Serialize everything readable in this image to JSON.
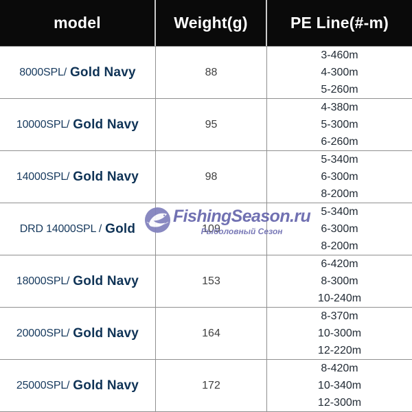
{
  "table": {
    "columns": [
      "model",
      "Weight(g)",
      "PE Line(#-m)"
    ],
    "rows": [
      {
        "model": "8000SPL/",
        "variant": "Gold Navy",
        "weight": "88",
        "pe_lines": [
          "3-460m",
          "4-300m",
          "5-260m"
        ]
      },
      {
        "model": "10000SPL/",
        "variant": "Gold Navy",
        "weight": "95",
        "pe_lines": [
          "4-380m",
          "5-300m",
          "6-260m"
        ]
      },
      {
        "model": "14000SPL/",
        "variant": "Gold Navy",
        "weight": "98",
        "pe_lines": [
          "5-340m",
          "6-300m",
          "8-200m"
        ]
      },
      {
        "model": "DRD 14000SPL /",
        "variant": "Gold",
        "weight": "109",
        "pe_lines": [
          "5-340m",
          "6-300m",
          "8-200m"
        ]
      },
      {
        "model": "18000SPL/",
        "variant": "Gold Navy",
        "weight": "153",
        "pe_lines": [
          "6-420m",
          "8-300m",
          "10-240m"
        ]
      },
      {
        "model": "20000SPL/",
        "variant": "Gold Navy",
        "weight": "164",
        "pe_lines": [
          "8-370m",
          "10-300m",
          "12-220m"
        ]
      },
      {
        "model": "25000SPL/",
        "variant": "Gold Navy",
        "weight": "172",
        "pe_lines": [
          "8-420m",
          "10-340m",
          "12-300m"
        ]
      }
    ]
  },
  "watermark": {
    "title": "FishingSeason.ru",
    "subtitle": "Рыболовный Сезон",
    "icon": "globe-fish-icon"
  },
  "colors": {
    "header_bg": "#0a0a0a",
    "header_text": "#ffffff",
    "model_navy": "#16395d",
    "variant_navy": "#0f3356",
    "weight_text": "#3f3f3f",
    "pe_text": "#222b35",
    "grid_line": "#8f8f8f",
    "watermark_purple": "#6767ad"
  }
}
